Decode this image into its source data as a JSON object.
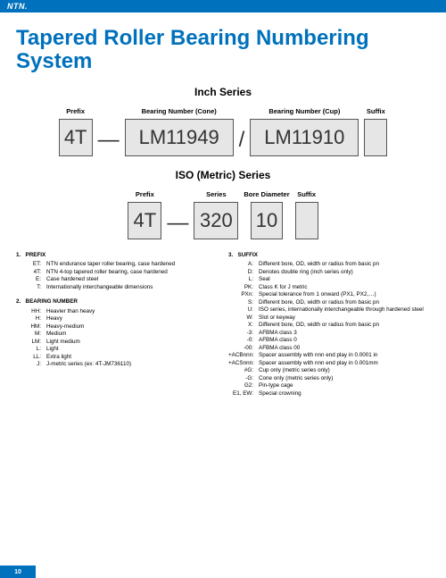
{
  "brand": "NTN.",
  "title": "Tapered Roller Bearing Numbering System",
  "page_number": "10",
  "inch": {
    "heading": "Inch Series",
    "labels": {
      "prefix": "Prefix",
      "cone": "Bearing Number (Cone)",
      "cup": "Bearing Number (Cup)",
      "suffix": "Suffix"
    },
    "prefix": "4T",
    "cone": "LM11949",
    "cup": "LM11910",
    "dash": "—",
    "slash": "/"
  },
  "iso": {
    "heading": "ISO (Metric) Series",
    "labels": {
      "prefix": "Prefix",
      "series": "Series",
      "bore": "Bore Diameter",
      "suffix": "Suffix"
    },
    "prefix": "4T",
    "series": "320",
    "bore": "10",
    "dash": "—"
  },
  "prefix_section": {
    "num": "1.",
    "title": "PREFIX",
    "items": [
      {
        "code": "ET:",
        "desc": "NTN endurance taper roller bearing, case hardened"
      },
      {
        "code": "4T:",
        "desc": "NTN 4-top tapered roller bearing, case hardened"
      },
      {
        "code": "E:",
        "desc": "Case hardened steel"
      },
      {
        "code": "T:",
        "desc": "Internationally interchangeable dimensions"
      }
    ]
  },
  "bearing_section": {
    "num": "2.",
    "title": "BEARING NUMBER",
    "items": [
      {
        "code": "HH:",
        "desc": "Heavier than heavy"
      },
      {
        "code": "H:",
        "desc": "Heavy"
      },
      {
        "code": "HM:",
        "desc": "Heavy-medium"
      },
      {
        "code": "M:",
        "desc": "Medium"
      },
      {
        "code": "LM:",
        "desc": "Light medium"
      },
      {
        "code": "L:",
        "desc": "Light"
      },
      {
        "code": "LL:",
        "desc": "Extra light"
      },
      {
        "code": "J:",
        "desc": "J-metric series (ex: 4T-JM736110)"
      }
    ]
  },
  "suffix_section": {
    "num": "3.",
    "title": "SUFFIX",
    "items": [
      {
        "code": "A:",
        "desc": "Different bore, OD, width or radius from basic pn"
      },
      {
        "code": "D:",
        "desc": "Denotes double ring (inch series only)"
      },
      {
        "code": "L:",
        "desc": "Seal"
      },
      {
        "code": "PK:",
        "desc": "Class K for J metric"
      },
      {
        "code": "PXn:",
        "desc": "Special tolerance from 1 onward (PX1, PX2,…)"
      },
      {
        "code": "S:",
        "desc": "Different bore, OD, width or radius from basic pn"
      },
      {
        "code": "U:",
        "desc": "ISO series, internationally interchangeable through hardened steel"
      },
      {
        "code": "W:",
        "desc": "Slot or keyway"
      },
      {
        "code": "X:",
        "desc": "Different bore, OD, width or radius from basic pn"
      },
      {
        "code": "-3:",
        "desc": "AFBMA class 3"
      },
      {
        "code": "-0:",
        "desc": "AFBMA class 0"
      },
      {
        "code": "-00:",
        "desc": "AFBMA class 00"
      },
      {
        "code": "+ACBnnn:",
        "desc": "Spacer assembly with nnn end play in 0.0001 in"
      },
      {
        "code": "+ACSnnn:",
        "desc": "Spacer assembly with nnn end play in 0.001mm"
      },
      {
        "code": "#G:",
        "desc": "Cup only (metric series only)"
      },
      {
        "code": "-G:",
        "desc": "Cone only (metric series only)"
      },
      {
        "code": "G2:",
        "desc": "Pin-type cage"
      },
      {
        "code": "E1, EW:",
        "desc": "Special crowning"
      }
    ]
  }
}
